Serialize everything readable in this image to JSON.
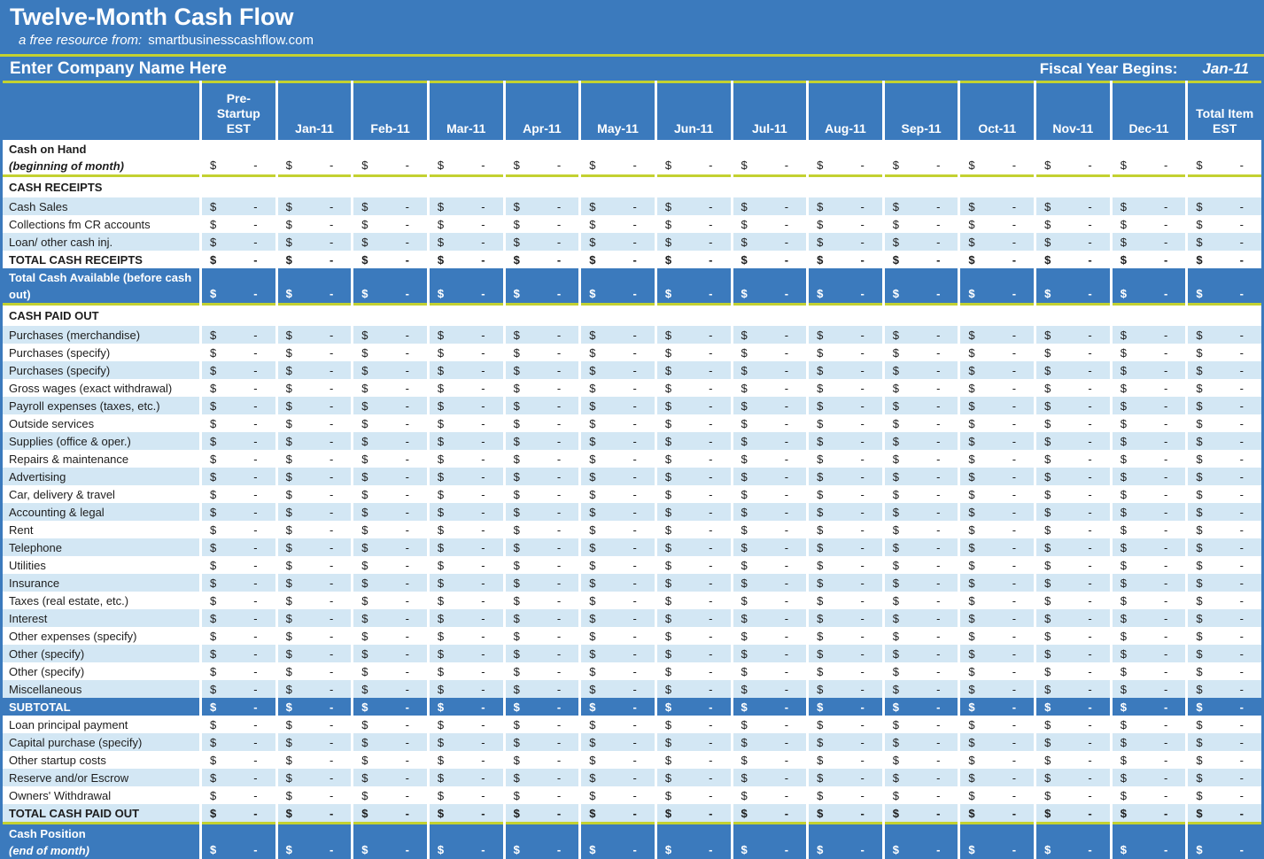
{
  "title_bar": {
    "title": "Twelve-Month Cash Flow",
    "subtitle_prefix": "a free resource from:",
    "subtitle_site": "smartbusinesscashflow.com"
  },
  "company_bar": {
    "company_name": "Enter Company Name Here",
    "fiscal_label": "Fiscal Year Begins:",
    "fiscal_value": "Jan-11"
  },
  "colors": {
    "banner_blue": "#3b7abd",
    "row_alt_blue": "#d3e7f4",
    "divider_yellow_green": "#c3d131",
    "text_dark": "#1d1d1d",
    "text_white": "#ffffff"
  },
  "table": {
    "cell_currency": "$",
    "cell_value": "-",
    "columns": [
      {
        "id": "pre-startup-est",
        "label": "Pre-Startup EST",
        "lines": [
          "Pre-",
          "Startup",
          "EST"
        ]
      },
      {
        "id": "jan-11",
        "label": "Jan-11",
        "lines": [
          "Jan-11"
        ]
      },
      {
        "id": "feb-11",
        "label": "Feb-11",
        "lines": [
          "Feb-11"
        ]
      },
      {
        "id": "mar-11",
        "label": "Mar-11",
        "lines": [
          "Mar-11"
        ]
      },
      {
        "id": "apr-11",
        "label": "Apr-11",
        "lines": [
          "Apr-11"
        ]
      },
      {
        "id": "may-11",
        "label": "May-11",
        "lines": [
          "May-11"
        ]
      },
      {
        "id": "jun-11",
        "label": "Jun-11",
        "lines": [
          "Jun-11"
        ]
      },
      {
        "id": "jul-11",
        "label": "Jul-11",
        "lines": [
          "Jul-11"
        ]
      },
      {
        "id": "aug-11",
        "label": "Aug-11",
        "lines": [
          "Aug-11"
        ]
      },
      {
        "id": "sep-11",
        "label": "Sep-11",
        "lines": [
          "Sep-11"
        ]
      },
      {
        "id": "oct-11",
        "label": "Oct-11",
        "lines": [
          "Oct-11"
        ]
      },
      {
        "id": "nov-11",
        "label": "Nov-11",
        "lines": [
          "Nov-11"
        ]
      },
      {
        "id": "dec-11",
        "label": "Dec-11",
        "lines": [
          "Dec-11"
        ]
      },
      {
        "id": "total-item-est",
        "label": "Total Item EST",
        "lines": [
          "Total Item",
          "EST"
        ]
      }
    ],
    "rows": [
      {
        "label": "Cash on Hand",
        "sublabel": "(beginning of month)",
        "style": "opening",
        "values": true,
        "divider": true
      },
      {
        "label": "CASH RECEIPTS",
        "style": "section",
        "values": false
      },
      {
        "label": "Cash Sales",
        "style": "alt",
        "values": true
      },
      {
        "label": "Collections fm CR accounts",
        "style": "plain",
        "values": true
      },
      {
        "label": "Loan/ other cash inj.",
        "style": "alt",
        "values": true
      },
      {
        "label": "TOTAL CASH RECEIPTS",
        "style": "total-plain",
        "values": true
      },
      {
        "label": "Total Cash Available (before cash out)",
        "style": "tall",
        "values": true,
        "divider": true
      },
      {
        "label": "CASH PAID OUT",
        "style": "section",
        "values": false
      },
      {
        "label": "Purchases (merchandise)",
        "style": "alt",
        "values": true
      },
      {
        "label": "Purchases (specify)",
        "style": "plain",
        "values": true
      },
      {
        "label": "Purchases (specify)",
        "style": "alt",
        "values": true
      },
      {
        "label": "Gross wages (exact withdrawal)",
        "style": "plain",
        "values": true
      },
      {
        "label": "Payroll expenses (taxes, etc.)",
        "style": "alt",
        "values": true
      },
      {
        "label": "Outside services",
        "style": "plain",
        "values": true
      },
      {
        "label": "Supplies (office & oper.)",
        "style": "alt",
        "values": true
      },
      {
        "label": "Repairs & maintenance",
        "style": "plain",
        "values": true
      },
      {
        "label": "Advertising",
        "style": "alt",
        "values": true
      },
      {
        "label": "Car, delivery & travel",
        "style": "plain",
        "values": true
      },
      {
        "label": "Accounting & legal",
        "style": "alt",
        "values": true
      },
      {
        "label": "Rent",
        "style": "plain",
        "values": true
      },
      {
        "label": "Telephone",
        "style": "alt",
        "values": true
      },
      {
        "label": "Utilities",
        "style": "plain",
        "values": true
      },
      {
        "label": "Insurance",
        "style": "alt",
        "values": true
      },
      {
        "label": "Taxes (real estate, etc.)",
        "style": "plain",
        "values": true
      },
      {
        "label": "Interest",
        "style": "alt",
        "values": true
      },
      {
        "label": "Other expenses (specify)",
        "style": "plain",
        "values": true
      },
      {
        "label": "Other (specify)",
        "style": "alt",
        "values": true
      },
      {
        "label": "Other (specify)",
        "style": "plain",
        "values": true
      },
      {
        "label": "Miscellaneous",
        "style": "alt",
        "values": true
      },
      {
        "label": "SUBTOTAL",
        "style": "highlight",
        "values": true
      },
      {
        "label": "Loan principal payment",
        "style": "plain",
        "values": true
      },
      {
        "label": "Capital purchase (specify)",
        "style": "alt",
        "values": true
      },
      {
        "label": "Other startup costs",
        "style": "plain",
        "values": true
      },
      {
        "label": "Reserve and/or Escrow",
        "style": "alt",
        "values": true
      },
      {
        "label": "Owners' Withdrawal",
        "style": "plain",
        "values": true
      },
      {
        "label": "TOTAL CASH PAID OUT",
        "style": "total-alt",
        "values": true,
        "divider": true
      },
      {
        "label": "Cash Position",
        "sublabel": "(end of month)",
        "style": "closing",
        "values": true
      }
    ]
  }
}
